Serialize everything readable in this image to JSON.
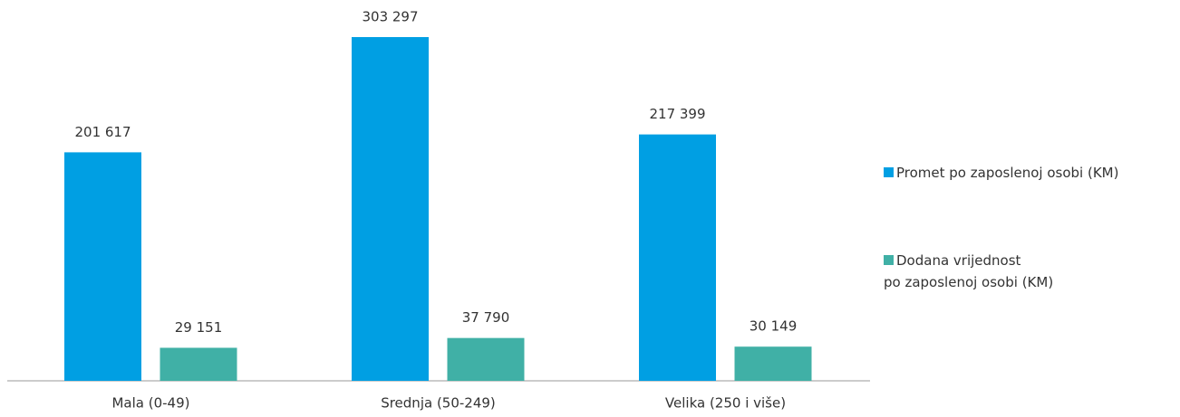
{
  "chart_data": {
    "type": "bar",
    "categories": [
      "Mala (0-49)",
      "Srednja (50-249)",
      "Velika (250 i više)"
    ],
    "series": [
      {
        "name": "Promet po zaposlenoj osobi (KM)",
        "color": "#009fe3",
        "values": [
          201617,
          303297,
          217399
        ],
        "value_labels": [
          "201 617",
          "303 297",
          "217 399"
        ]
      },
      {
        "name": "Dodana vrijednost\npo zaposlenoj osobi (KM)",
        "color": "#40b0a6",
        "values": [
          29151,
          37790,
          30149
        ],
        "value_labels": [
          "29 151",
          "37 790",
          "30 149"
        ]
      }
    ],
    "legend": "right"
  }
}
